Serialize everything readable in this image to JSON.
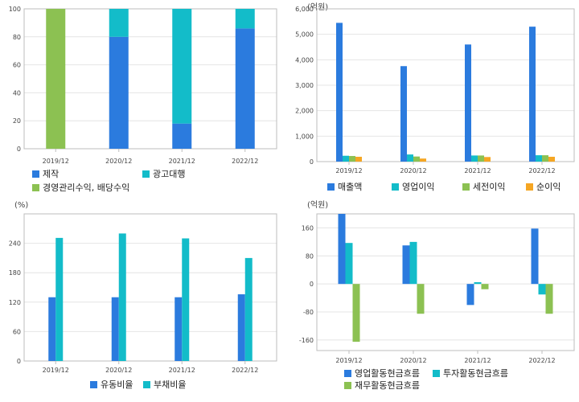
{
  "chart_data": [
    {
      "type": "bar",
      "stacked": true,
      "categories": [
        "2019/12",
        "2020/12",
        "2021/12",
        "2022/12"
      ],
      "series": [
        {
          "name": "제작",
          "values": [
            0,
            80,
            18,
            86
          ],
          "color": "#2b7bde"
        },
        {
          "name": "광고대행",
          "values": [
            0,
            20,
            82,
            14
          ],
          "color": "#13bcc9"
        },
        {
          "name": "경영관리수익, 배당수익",
          "values": [
            100,
            0,
            0,
            0
          ],
          "color": "#8cc152"
        }
      ],
      "unit": "",
      "ylim": [
        0,
        100
      ],
      "yticks": [
        0,
        20,
        40,
        60,
        80,
        100
      ],
      "ytick_labels": [
        "0",
        "20",
        "40",
        "60",
        "80",
        "100"
      ],
      "legend": "bottom",
      "grid": true
    },
    {
      "type": "bar",
      "stacked": false,
      "categories": [
        "2019/12",
        "2020/12",
        "2021/12",
        "2022/12"
      ],
      "series": [
        {
          "name": "매출액",
          "values": [
            5450,
            3750,
            4600,
            5300
          ],
          "color": "#2b7bde"
        },
        {
          "name": "영업이익",
          "values": [
            230,
            280,
            240,
            250
          ],
          "color": "#13bcc9"
        },
        {
          "name": "세전이익",
          "values": [
            220,
            200,
            240,
            250
          ],
          "color": "#8cc152"
        },
        {
          "name": "순이익",
          "values": [
            190,
            120,
            180,
            190
          ],
          "color": "#f5a623"
        }
      ],
      "unit": "(억원)",
      "ylim": [
        0,
        6000
      ],
      "yticks": [
        0,
        1000,
        2000,
        3000,
        4000,
        5000,
        6000
      ],
      "ytick_labels": [
        "0",
        "1,000",
        "2,000",
        "3,000",
        "4,000",
        "5,000",
        "6,000"
      ],
      "legend": "bottom",
      "grid": true
    },
    {
      "type": "bar",
      "stacked": false,
      "categories": [
        "2019/12",
        "2020/12",
        "2021/12",
        "2022/12"
      ],
      "series": [
        {
          "name": "유동비율",
          "values": [
            130,
            130,
            130,
            136
          ],
          "color": "#2b7bde"
        },
        {
          "name": "부채비율",
          "values": [
            251,
            260,
            250,
            210
          ],
          "color": "#13bcc9"
        }
      ],
      "unit": "(%)",
      "ylim": [
        0,
        300
      ],
      "yticks": [
        0,
        60,
        120,
        180,
        240
      ],
      "ytick_labels": [
        "0",
        "60",
        "120",
        "180",
        "240"
      ],
      "legend": "bottom",
      "grid": true
    },
    {
      "type": "bar",
      "stacked": false,
      "categories": [
        "2019/12",
        "2020/12",
        "2021/12",
        "2022/12"
      ],
      "series": [
        {
          "name": "영업활동현금흐름",
          "values": [
            200,
            110,
            -60,
            158
          ],
          "color": "#2b7bde"
        },
        {
          "name": "투자활동현금흐름",
          "values": [
            117,
            120,
            5,
            -30
          ],
          "color": "#13bcc9"
        },
        {
          "name": "재무활동현금흐름",
          "values": [
            -165,
            -85,
            -15,
            -85
          ],
          "color": "#8cc152"
        }
      ],
      "unit": "(억원)",
      "ylim": [
        -190,
        200
      ],
      "yticks": [
        -160,
        -80,
        0,
        80,
        160
      ],
      "ytick_labels": [
        "-160",
        "-80",
        "0",
        "80",
        "160"
      ],
      "legend": "bottom",
      "grid": true
    }
  ]
}
